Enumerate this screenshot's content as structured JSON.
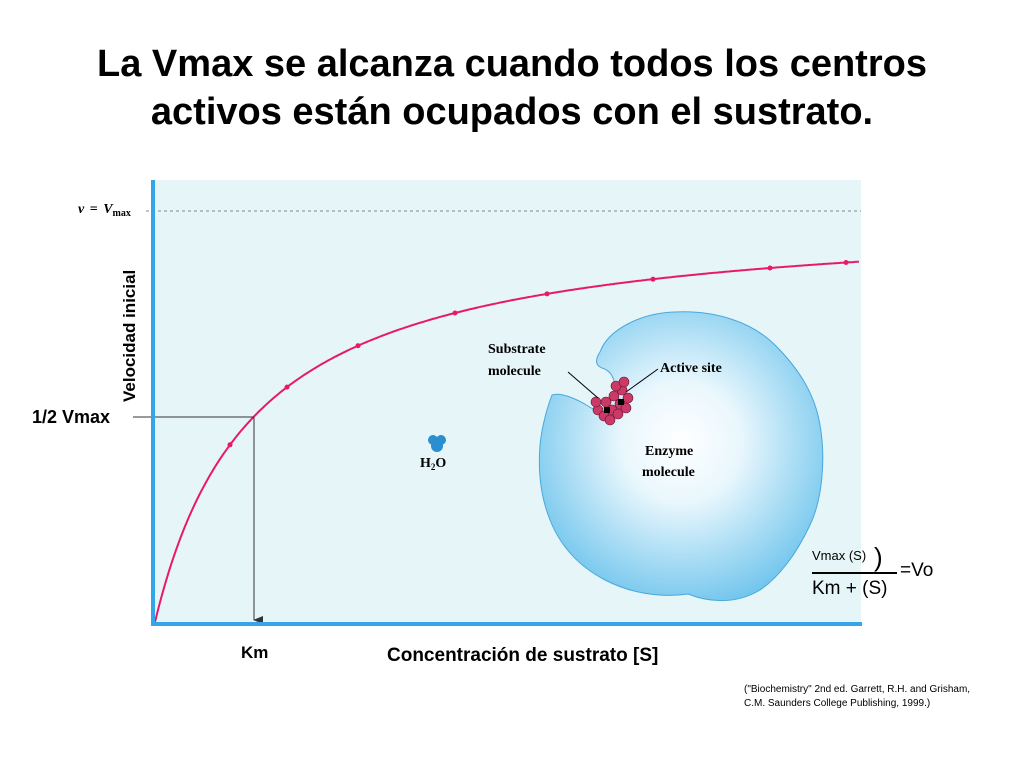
{
  "slide": {
    "title_line1": "La Vmax se alcanza cuando todos los centros",
    "title_line2": "activos están ocupados con el sustrato."
  },
  "graph": {
    "vmax_label_v": "v",
    "vmax_label_eq": "=",
    "vmax_label_V": "V",
    "vmax_label_sub": "max",
    "y_axis_label": "Velocidad inicial",
    "half_vmax_label": "1/2 Vmax",
    "km_label": "Km",
    "x_axis_label": "Concentración de sustrato [S]",
    "colors": {
      "plot_bg": "#e6f5f8",
      "axis": "#33a5e8",
      "curve": "#e8196b",
      "enzyme": "#7dcdf0",
      "substrate": "#b8305a"
    }
  },
  "inset": {
    "substrate_line1": "Substrate",
    "substrate_line2": "molecule",
    "active_site": "Active site",
    "enzyme_line1": "Enzyme",
    "enzyme_line2": "molecule",
    "water_H": "H",
    "water_sub": "2",
    "water_O": "O"
  },
  "formula": {
    "numerator": "Vmax (S)",
    "paren": ")",
    "equals": "=Vo",
    "denominator": "Km + (S)"
  },
  "citation": {
    "line1": "(\"Biochemistry\" 2nd ed. Garrett, R.H. and Grisham,",
    "line2": "C.M. Saunders College Publishing, 1999.)"
  }
}
